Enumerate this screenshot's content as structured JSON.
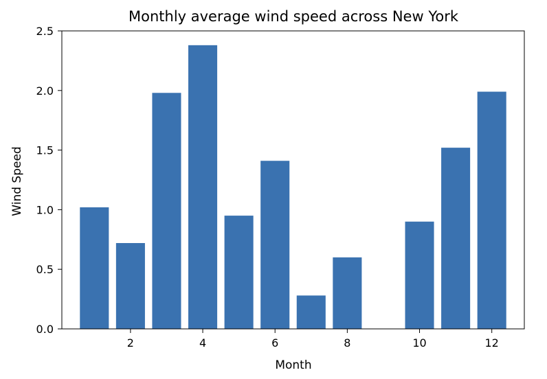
{
  "chart_data": {
    "type": "bar",
    "title": "Monthly average wind speed across New York",
    "xlabel": "Month",
    "ylabel": "Wind Speed",
    "x": [
      1,
      2,
      3,
      4,
      5,
      6,
      7,
      8,
      10,
      11,
      12
    ],
    "values": [
      1.02,
      0.72,
      1.98,
      2.38,
      0.95,
      1.41,
      0.28,
      0.6,
      0.9,
      1.52,
      1.99
    ],
    "xlim": [
      0.1,
      12.9
    ],
    "ylim": [
      0,
      2.5
    ],
    "xticks": [
      2,
      4,
      6,
      8,
      10,
      12
    ],
    "xtick_labels": [
      "2",
      "4",
      "6",
      "8",
      "10",
      "12"
    ],
    "yticks": [
      0,
      0.5,
      1.0,
      1.5,
      2.0,
      2.5
    ],
    "ytick_labels": [
      "0.0",
      "0.5",
      "1.0",
      "1.5",
      "2.0",
      "2.5"
    ],
    "bar_color": "#3a72b0",
    "grid": false,
    "legend": "none"
  }
}
